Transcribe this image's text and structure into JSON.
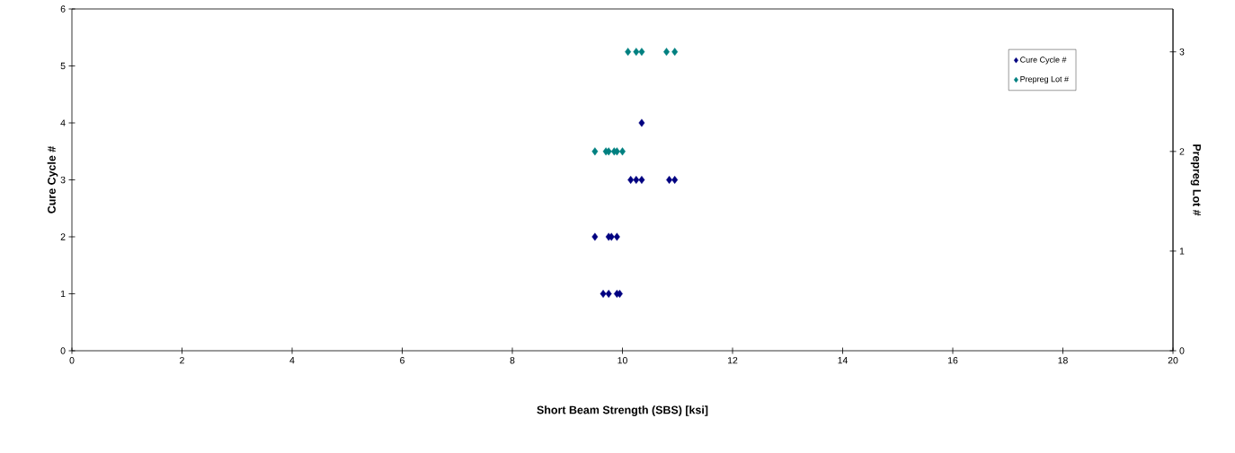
{
  "chart_data": {
    "type": "scatter",
    "xlabel": "Short Beam Strength (SBS)  [ksi]",
    "ylabel": "Cure Cycle #",
    "y2label": "Prepreg Lot #",
    "xlim": [
      0,
      20
    ],
    "xticks": [
      0,
      2,
      4,
      6,
      8,
      10,
      12,
      14,
      16,
      18,
      20
    ],
    "ylim": [
      0,
      6
    ],
    "yticks": [
      0,
      1,
      2,
      3,
      4,
      5,
      6
    ],
    "y2lim": [
      0,
      3.43
    ],
    "y2ticks": [
      0,
      1,
      2,
      3
    ],
    "marker": "diamond",
    "legend": "top right",
    "series": [
      {
        "name": "Cure Cycle #",
        "color": "#000080",
        "x": [
          9.65,
          9.75,
          9.9,
          9.95,
          9.5,
          9.75,
          9.8,
          9.9,
          10.15,
          10.25,
          10.35,
          10.85,
          10.95,
          10.35
        ],
        "values": [
          1,
          1,
          1,
          1,
          2,
          2,
          2,
          2,
          3,
          3,
          3,
          3,
          3,
          4
        ]
      },
      {
        "name": "Prepreg Lot #",
        "color": "#008080",
        "axis": "y2",
        "x": [
          9.5,
          9.7,
          9.75,
          9.85,
          9.9,
          10.0,
          10.1,
          10.25,
          10.35,
          10.8,
          10.95
        ],
        "values": [
          2,
          2,
          2,
          2,
          2,
          2,
          3,
          3,
          3,
          3,
          3
        ]
      }
    ]
  }
}
